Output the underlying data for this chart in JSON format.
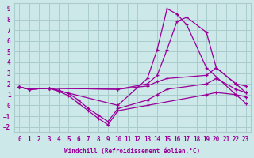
{
  "xlabel": "Windchill (Refroidissement éolien,°C)",
  "background_color": "#cce8e8",
  "grid_color": "#aacccc",
  "line_color": "#990099",
  "xlim": [
    -0.5,
    23.5
  ],
  "ylim": [
    -2.5,
    9.5
  ],
  "xticks": [
    0,
    1,
    2,
    3,
    4,
    5,
    6,
    7,
    8,
    9,
    10,
    11,
    12,
    13,
    14,
    15,
    16,
    17,
    18,
    19,
    20,
    21,
    22,
    23
  ],
  "yticks": [
    -2,
    -1,
    0,
    1,
    2,
    3,
    4,
    5,
    6,
    7,
    8,
    9
  ],
  "lines": [
    {
      "x": [
        0,
        1,
        3,
        10,
        13,
        14,
        15,
        16,
        17,
        19,
        22,
        23
      ],
      "y": [
        1.7,
        1.5,
        1.6,
        0.0,
        2.5,
        5.2,
        9.0,
        8.5,
        7.5,
        3.5,
        1.0,
        0.8
      ]
    },
    {
      "x": [
        0,
        1,
        3,
        10,
        13,
        14,
        15,
        16,
        17,
        19,
        20,
        22,
        23
      ],
      "y": [
        1.7,
        1.5,
        1.6,
        1.5,
        2.0,
        2.8,
        5.2,
        7.8,
        8.2,
        6.8,
        3.5,
        2.0,
        1.2
      ]
    },
    {
      "x": [
        0,
        1,
        3,
        10,
        13,
        14,
        15,
        19,
        20,
        22,
        23
      ],
      "y": [
        1.7,
        1.5,
        1.6,
        1.5,
        1.8,
        2.2,
        2.5,
        2.8,
        3.5,
        2.0,
        1.8
      ]
    },
    {
      "x": [
        0,
        1,
        3,
        4,
        5,
        6,
        7,
        8,
        9,
        10,
        13,
        14,
        15,
        19,
        20,
        22,
        23
      ],
      "y": [
        1.7,
        1.5,
        1.6,
        1.4,
        1.1,
        0.5,
        -0.3,
        -0.9,
        -1.5,
        -0.3,
        0.5,
        1.0,
        1.5,
        2.0,
        2.5,
        1.5,
        1.2
      ]
    },
    {
      "x": [
        0,
        1,
        3,
        4,
        5,
        6,
        7,
        8,
        9,
        10,
        13,
        19,
        20,
        22,
        23
      ],
      "y": [
        1.7,
        1.5,
        1.6,
        1.3,
        0.9,
        0.2,
        -0.5,
        -1.2,
        -1.8,
        -0.5,
        0.0,
        1.0,
        1.2,
        1.0,
        0.2
      ]
    }
  ]
}
